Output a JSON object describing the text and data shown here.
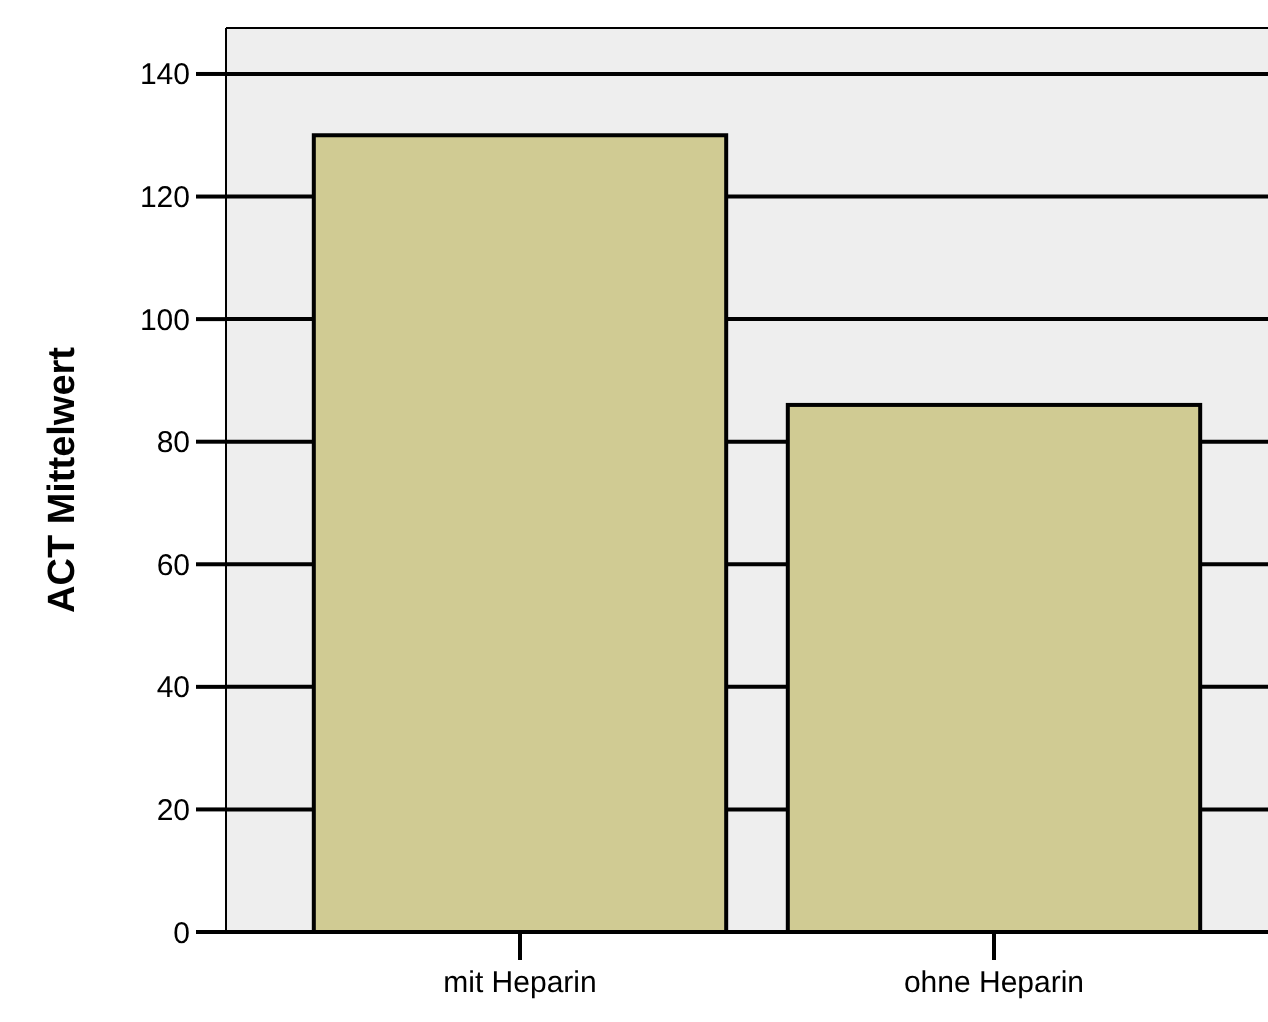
{
  "chart_data": {
    "type": "bar",
    "ylabel": "ACT Mittelwert",
    "categories": [
      "mit Heparin",
      "ohne Heparin"
    ],
    "values": [
      130,
      86
    ],
    "color": "#d0cb93",
    "ylim": [
      0,
      147.5
    ],
    "yticks": [
      0,
      20,
      40,
      60,
      80,
      100,
      120,
      140
    ],
    "grid": "y"
  }
}
